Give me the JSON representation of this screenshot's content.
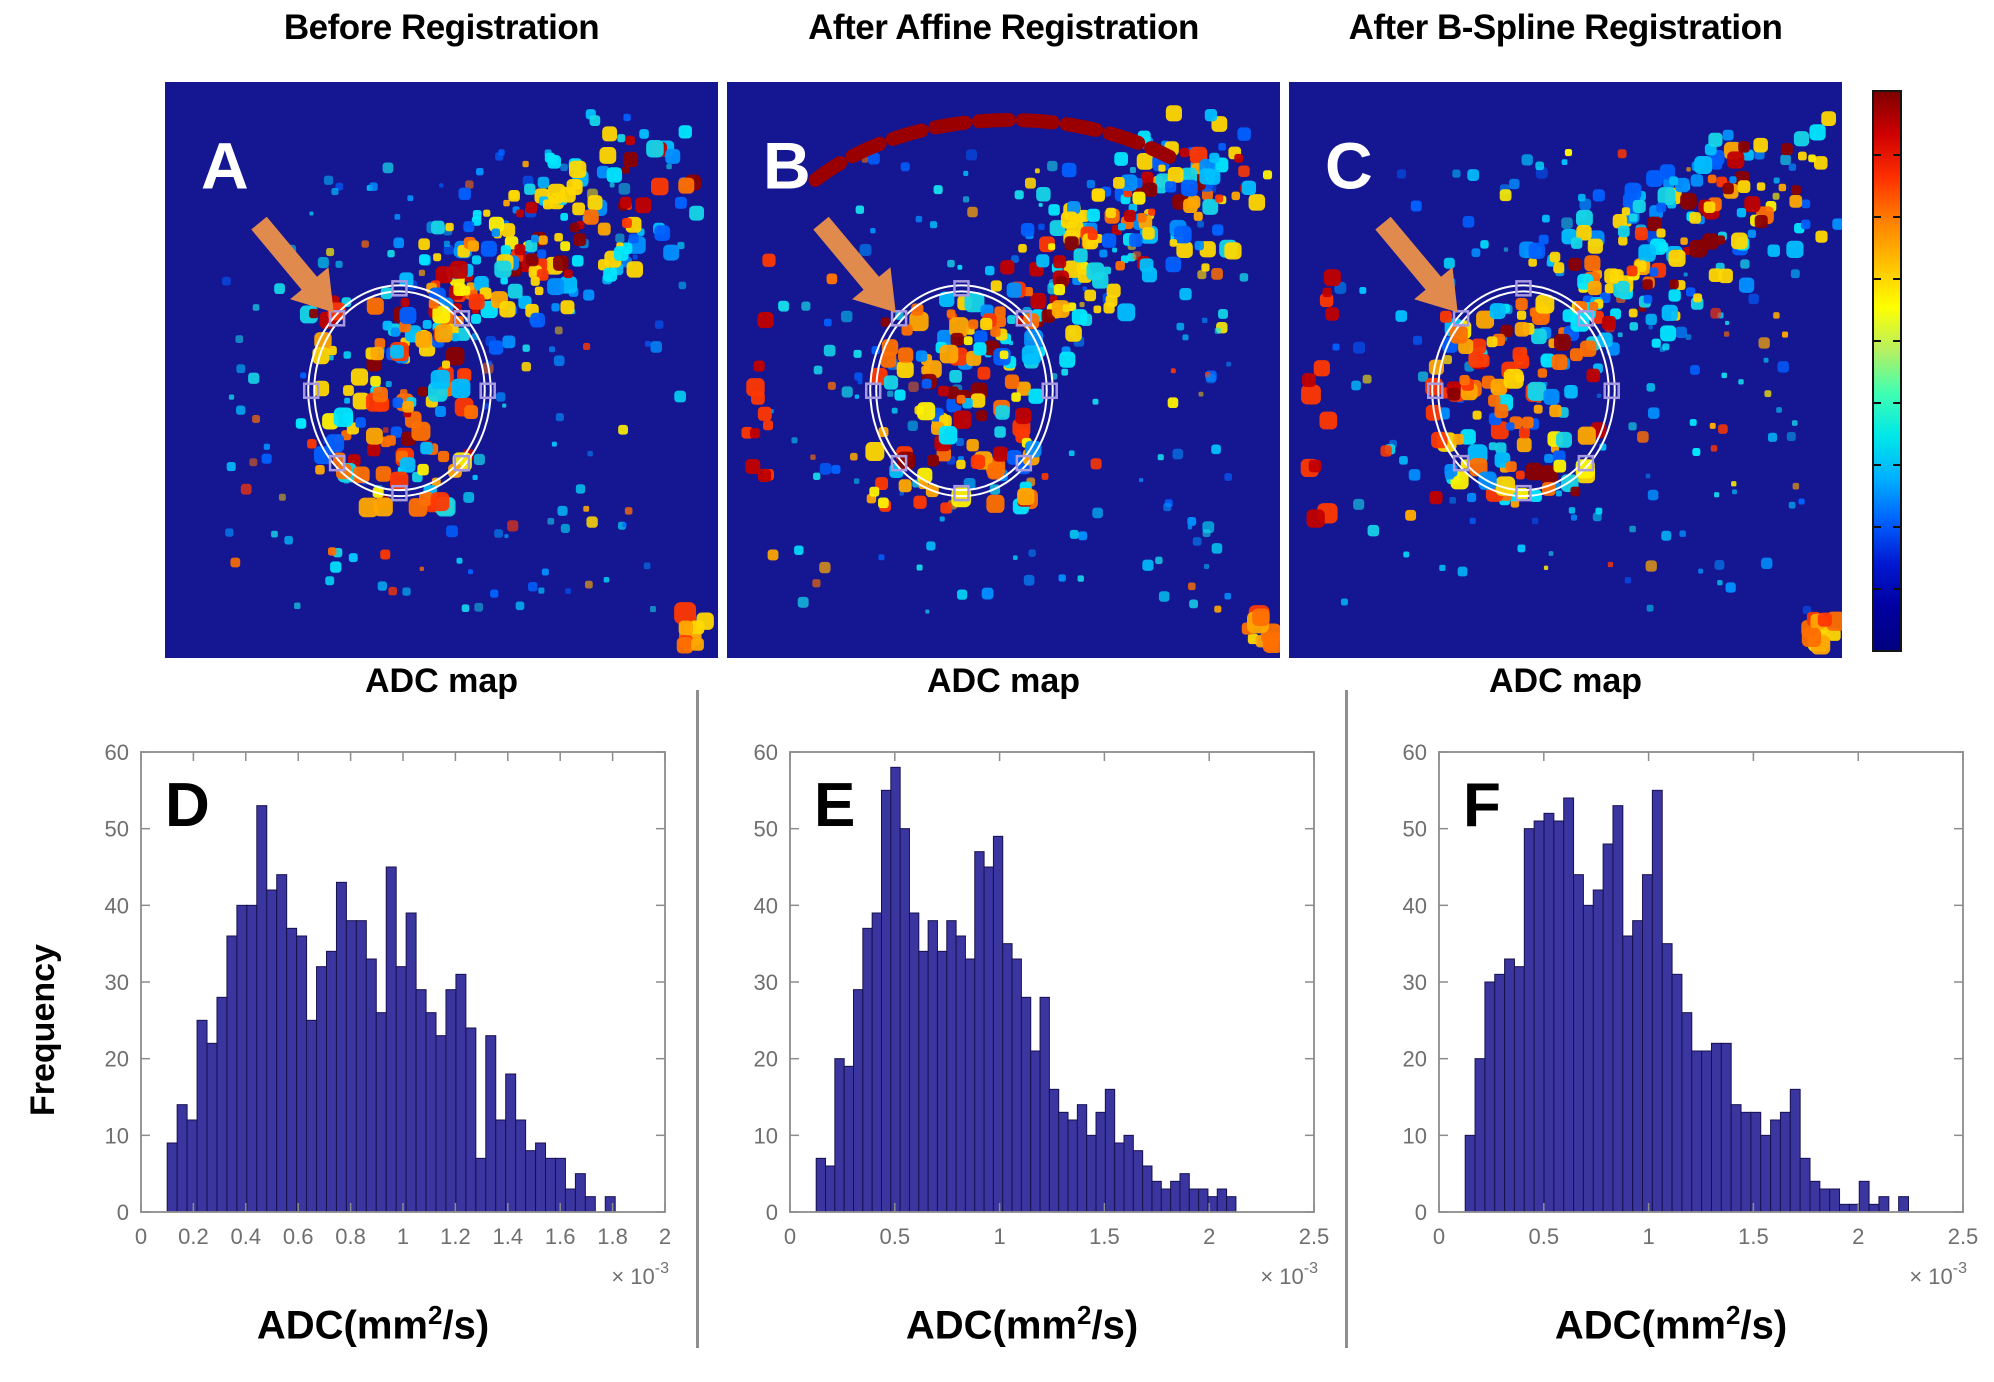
{
  "figure": {
    "columns": [
      {
        "title": "Before Registration",
        "map_label": "A",
        "caption": "ADC map",
        "top_arc_artifact": false,
        "left_edge_artifact": false
      },
      {
        "title": "After Affine Registration",
        "map_label": "B",
        "caption": "ADC map",
        "top_arc_artifact": true,
        "left_edge_artifact": true
      },
      {
        "title": "After B-Spline Registration",
        "map_label": "C",
        "caption": "ADC map",
        "top_arc_artifact": false,
        "left_edge_artifact": true
      }
    ]
  },
  "hist_common": {
    "ylabel": "Frequency",
    "xlabel_pre": "ADC(mm",
    "xlabel_sup": "2",
    "xlabel_post": "/s)",
    "mult_base": "× 10",
    "mult_exp": "-3"
  },
  "chart_data": [
    {
      "type": "bar",
      "panel_label": "D",
      "title": "",
      "xlabel": "ADC(mm2/s)",
      "ylabel": "Frequency",
      "x_multiplier": "×10⁻³",
      "xlim": [
        0,
        2
      ],
      "ylim": [
        0,
        60
      ],
      "xticks": [
        0,
        0.2,
        0.4,
        0.6,
        0.8,
        1,
        1.2,
        1.4,
        1.6,
        1.8,
        2
      ],
      "yticks": [
        0,
        10,
        20,
        30,
        40,
        50,
        60
      ],
      "bin_start": 0.1,
      "bin_width": 0.038,
      "values": [
        9,
        14,
        12,
        25,
        22,
        28,
        36,
        40,
        40,
        53,
        42,
        44,
        37,
        36,
        25,
        32,
        34,
        43,
        38,
        38,
        33,
        26,
        45,
        32,
        39,
        29,
        26,
        23,
        29,
        31,
        24,
        7,
        23,
        12,
        18,
        12,
        8,
        9,
        7,
        7,
        3,
        5,
        2,
        0,
        2
      ]
    },
    {
      "type": "bar",
      "panel_label": "E",
      "title": "",
      "xlabel": "ADC(mm2/s)",
      "ylabel": "Frequency",
      "x_multiplier": "×10⁻³",
      "xlim": [
        0,
        2.5
      ],
      "ylim": [
        0,
        60
      ],
      "xticks": [
        0,
        0.5,
        1,
        1.5,
        2,
        2.5
      ],
      "yticks": [
        0,
        10,
        20,
        30,
        40,
        50,
        60
      ],
      "bin_start": 0.125,
      "bin_width": 0.0445,
      "values": [
        7,
        6,
        20,
        19,
        29,
        37,
        39,
        55,
        58,
        50,
        39,
        34,
        38,
        34,
        38,
        36,
        33,
        47,
        45,
        49,
        35,
        33,
        28,
        21,
        28,
        16,
        13,
        12,
        14,
        10,
        13,
        16,
        9,
        10,
        8,
        6,
        4,
        3,
        4,
        5,
        3,
        3,
        2,
        3,
        2
      ]
    },
    {
      "type": "bar",
      "panel_label": "F",
      "title": "",
      "xlabel": "ADC(mm2/s)",
      "ylabel": "Frequency",
      "x_multiplier": "×10⁻³",
      "xlim": [
        0,
        2.5
      ],
      "ylim": [
        0,
        60
      ],
      "xticks": [
        0,
        0.5,
        1,
        1.5,
        2,
        2.5
      ],
      "yticks": [
        0,
        10,
        20,
        30,
        40,
        50,
        60
      ],
      "bin_start": 0.125,
      "bin_width": 0.047,
      "values": [
        10,
        20,
        30,
        31,
        33,
        32,
        50,
        51,
        52,
        51,
        54,
        44,
        40,
        42,
        48,
        53,
        36,
        38,
        44,
        55,
        35,
        31,
        26,
        21,
        21,
        22,
        22,
        14,
        13,
        13,
        10,
        12,
        13,
        16,
        7,
        4,
        3,
        3,
        1,
        1,
        4,
        1,
        2,
        0,
        2
      ]
    }
  ],
  "colors": {
    "page_background": "#ffffff",
    "map_background": "#151692",
    "arrow": "#e08a4e",
    "roi_outline": "#ffffff",
    "roi_handle": "#a79ae0",
    "bar_fill": "#3b35a0",
    "bar_edge": "#17114f",
    "axis": "#8c8c8c",
    "tick_text": "#6f6f6f",
    "divider": "#8f8f8f",
    "colorbar_stops": [
      "#800000",
      "#d00000",
      "#ff3000",
      "#ff8000",
      "#ffc000",
      "#ffff00",
      "#b8f060",
      "#40ffb0",
      "#00e8e8",
      "#00b0ff",
      "#0060ff",
      "#0018d0",
      "#0000a0",
      "#000080"
    ],
    "map_cool": [
      "#00e8ff",
      "#00c0ff",
      "#0090ff",
      "#16d6e8",
      "#0060ff"
    ],
    "map_warm": [
      "#ff3800",
      "#ff7000",
      "#ffa800",
      "#ffd800",
      "#fff200",
      "#c00000",
      "#8a0000"
    ]
  }
}
